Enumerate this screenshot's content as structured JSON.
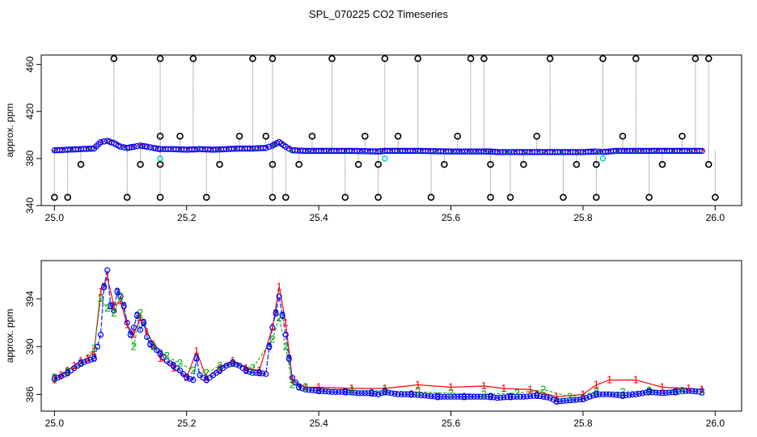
{
  "title": "SPL_070225  CO2 Timeseries",
  "chart_data": [
    {
      "type": "scatter",
      "ylabel": "approx. ppm",
      "xlim": [
        24.98,
        26.04
      ],
      "ylim": [
        340,
        468
      ],
      "xticks": [
        "25.0",
        "25.2",
        "25.4",
        "25.6",
        "25.8",
        "26.0"
      ],
      "yticks": [
        "340",
        "380",
        "420",
        "460"
      ],
      "colors": {
        "series": "#ff0000",
        "series_alt": "#00a000",
        "points": "#0000ff",
        "spikes": "#000000",
        "spike_lines": "#777777",
        "marker_cyan": "#00d0d0"
      },
      "series": [
        {
          "values": [
            [
              25.0,
              387
            ],
            [
              25.02,
              387.5
            ],
            [
              25.04,
              388
            ],
            [
              25.06,
              388.5
            ],
            [
              25.07,
              394
            ],
            [
              25.08,
              395
            ],
            [
              25.09,
              393
            ],
            [
              25.1,
              390
            ],
            [
              25.11,
              389
            ],
            [
              25.12,
              390
            ],
            [
              25.13,
              391
            ],
            [
              25.14,
              390
            ],
            [
              25.15,
              389
            ],
            [
              25.16,
              388
            ],
            [
              25.18,
              388
            ],
            [
              25.2,
              387.5
            ],
            [
              25.22,
              388
            ],
            [
              25.24,
              387.5
            ],
            [
              25.26,
              388
            ],
            [
              25.28,
              388.5
            ],
            [
              25.3,
              388.5
            ],
            [
              25.32,
              389
            ],
            [
              25.33,
              391
            ],
            [
              25.34,
              394
            ],
            [
              25.35,
              390
            ],
            [
              25.36,
              387
            ],
            [
              25.38,
              386.5
            ],
            [
              25.4,
              386.5
            ],
            [
              25.45,
              386.5
            ],
            [
              25.49,
              386
            ],
            [
              25.5,
              386.5
            ],
            [
              25.55,
              386.5
            ],
            [
              25.6,
              386
            ],
            [
              25.65,
              386
            ],
            [
              25.66,
              386
            ],
            [
              25.67,
              385.5
            ],
            [
              25.7,
              385.5
            ],
            [
              25.75,
              385.5
            ],
            [
              25.8,
              385.5
            ],
            [
              25.82,
              386
            ],
            [
              25.83,
              385.5
            ],
            [
              25.85,
              386.5
            ],
            [
              25.9,
              386.5
            ],
            [
              25.95,
              386.5
            ],
            [
              25.98,
              386.5
            ]
          ]
        }
      ],
      "spikes": [
        [
          25.0,
          347
        ],
        [
          25.02,
          347
        ],
        [
          25.04,
          375
        ],
        [
          25.09,
          465
        ],
        [
          25.11,
          347
        ],
        [
          25.13,
          375
        ],
        [
          25.16,
          347
        ],
        [
          25.16,
          375
        ],
        [
          25.16,
          399
        ],
        [
          25.16,
          465
        ],
        [
          25.19,
          399
        ],
        [
          25.21,
          465
        ],
        [
          25.23,
          347
        ],
        [
          25.25,
          375
        ],
        [
          25.28,
          399
        ],
        [
          25.3,
          465
        ],
        [
          25.32,
          399
        ],
        [
          25.33,
          465
        ],
        [
          25.33,
          375
        ],
        [
          25.33,
          347
        ],
        [
          25.35,
          347
        ],
        [
          25.37,
          375
        ],
        [
          25.39,
          399
        ],
        [
          25.42,
          465
        ],
        [
          25.44,
          347
        ],
        [
          25.46,
          375
        ],
        [
          25.47,
          399
        ],
        [
          25.49,
          347
        ],
        [
          25.49,
          375
        ],
        [
          25.5,
          465
        ],
        [
          25.52,
          399
        ],
        [
          25.55,
          465
        ],
        [
          25.57,
          347
        ],
        [
          25.59,
          375
        ],
        [
          25.61,
          399
        ],
        [
          25.63,
          465
        ],
        [
          25.65,
          465
        ],
        [
          25.66,
          375
        ],
        [
          25.66,
          347
        ],
        [
          25.69,
          347
        ],
        [
          25.71,
          375
        ],
        [
          25.73,
          399
        ],
        [
          25.75,
          465
        ],
        [
          25.77,
          347
        ],
        [
          25.79,
          375
        ],
        [
          25.82,
          375
        ],
        [
          25.82,
          347
        ],
        [
          25.83,
          465
        ],
        [
          25.86,
          399
        ],
        [
          25.88,
          465
        ],
        [
          25.9,
          347
        ],
        [
          25.92,
          375
        ],
        [
          25.95,
          399
        ],
        [
          25.97,
          465
        ],
        [
          25.99,
          465
        ],
        [
          25.99,
          375
        ],
        [
          26.0,
          347
        ]
      ],
      "cyan_markers": [
        [
          25.16,
          380
        ],
        [
          25.5,
          380
        ],
        [
          25.83,
          380
        ]
      ]
    },
    {
      "type": "scatter",
      "ylabel": "approx. ppm",
      "xlim": [
        24.98,
        26.04
      ],
      "ylim": [
        384.6,
        397.2
      ],
      "xticks": [
        "25.0",
        "25.2",
        "25.4",
        "25.6",
        "25.8",
        "26.0"
      ],
      "yticks": [
        "386",
        "390",
        "394"
      ],
      "marker_labels": [
        "1",
        "2",
        "3"
      ],
      "colors": {
        "series_1": "#ff0000",
        "series_2": "#00aa00",
        "series_3": "#0000cc",
        "points": "#0000ff",
        "line": "#2040ff"
      },
      "series": [
        {
          "name": "1",
          "values": [
            [
              25.0,
              387.2
            ],
            [
              25.01,
              387.6
            ],
            [
              25.02,
              388.0
            ],
            [
              25.03,
              388.4
            ],
            [
              25.04,
              388.8
            ],
            [
              25.05,
              389.0
            ],
            [
              25.06,
              389.6
            ],
            [
              25.07,
              394.6
            ],
            [
              25.08,
              395.8
            ],
            [
              25.09,
              393.4
            ],
            [
              25.1,
              393.8
            ],
            [
              25.11,
              391.8
            ],
            [
              25.12,
              391.0
            ],
            [
              25.13,
              392.4
            ],
            [
              25.14,
              391.2
            ],
            [
              25.15,
              390.2
            ],
            [
              25.16,
              389.0
            ],
            [
              25.18,
              388.2
            ],
            [
              25.2,
              387.4
            ],
            [
              25.215,
              389.6
            ],
            [
              25.23,
              387.4
            ],
            [
              25.25,
              388.2
            ],
            [
              25.27,
              388.8
            ],
            [
              25.29,
              388.2
            ],
            [
              25.31,
              388.0
            ],
            [
              25.33,
              391.6
            ],
            [
              25.34,
              395.0
            ],
            [
              25.35,
              392.0
            ],
            [
              25.36,
              387.2
            ],
            [
              25.38,
              386.6
            ],
            [
              25.4,
              386.6
            ],
            [
              25.45,
              386.5
            ],
            [
              25.5,
              386.5
            ],
            [
              25.55,
              386.8
            ],
            [
              25.6,
              386.6
            ],
            [
              25.65,
              386.7
            ],
            [
              25.68,
              386.5
            ],
            [
              25.72,
              386.4
            ],
            [
              25.76,
              385.8
            ],
            [
              25.8,
              386.0
            ],
            [
              25.82,
              386.8
            ],
            [
              25.84,
              387.2
            ],
            [
              25.88,
              387.2
            ],
            [
              25.92,
              386.6
            ],
            [
              25.96,
              386.5
            ],
            [
              25.98,
              386.4
            ]
          ]
        },
        {
          "name": "2",
          "values": [
            [
              25.0,
              387.4
            ],
            [
              25.02,
              387.9
            ],
            [
              25.04,
              388.6
            ],
            [
              25.06,
              389.8
            ],
            [
              25.07,
              394.0
            ],
            [
              25.08,
              393.2
            ],
            [
              25.09,
              392.8
            ],
            [
              25.1,
              394.2
            ],
            [
              25.12,
              390.0
            ],
            [
              25.13,
              392.8
            ],
            [
              25.15,
              390.0
            ],
            [
              25.17,
              389.2
            ],
            [
              25.19,
              388.6
            ],
            [
              25.21,
              388.0
            ],
            [
              25.23,
              387.8
            ],
            [
              25.25,
              388.4
            ],
            [
              25.27,
              388.6
            ],
            [
              25.3,
              388.2
            ],
            [
              25.33,
              390.6
            ],
            [
              25.34,
              392.4
            ],
            [
              25.35,
              390.0
            ],
            [
              25.36,
              386.8
            ],
            [
              25.38,
              386.6
            ],
            [
              25.45,
              386.3
            ],
            [
              25.5,
              386.3
            ],
            [
              25.55,
              386.2
            ],
            [
              25.6,
              386.1
            ],
            [
              25.65,
              386.0
            ],
            [
              25.7,
              386.1
            ],
            [
              25.74,
              386.4
            ],
            [
              25.78,
              385.8
            ],
            [
              25.82,
              386.2
            ],
            [
              25.86,
              386.2
            ],
            [
              25.9,
              386.3
            ],
            [
              25.95,
              386.3
            ],
            [
              25.98,
              386.2
            ]
          ]
        },
        {
          "name": "3",
          "values": [
            [
              25.0,
              387.3
            ],
            [
              25.01,
              387.5
            ],
            [
              25.02,
              387.8
            ],
            [
              25.03,
              388.2
            ],
            [
              25.04,
              388.6
            ],
            [
              25.05,
              388.8
            ],
            [
              25.06,
              389.0
            ],
            [
              25.07,
              391.0
            ],
            [
              25.075,
              395.0
            ],
            [
              25.08,
              396.4
            ],
            [
              25.085,
              393.4
            ],
            [
              25.09,
              393.0
            ],
            [
              25.095,
              394.6
            ],
            [
              25.1,
              394.2
            ],
            [
              25.105,
              393.4
            ],
            [
              25.11,
              392.0
            ],
            [
              25.115,
              391.0
            ],
            [
              25.12,
              391.6
            ],
            [
              25.125,
              392.6
            ],
            [
              25.13,
              391.4
            ],
            [
              25.135,
              392.0
            ],
            [
              25.14,
              390.8
            ],
            [
              25.145,
              390.2
            ],
            [
              25.15,
              390.0
            ],
            [
              25.16,
              389.4
            ],
            [
              25.17,
              388.8
            ],
            [
              25.18,
              388.4
            ],
            [
              25.19,
              388.0
            ],
            [
              25.2,
              387.4
            ],
            [
              25.21,
              387.2
            ],
            [
              25.215,
              389.0
            ],
            [
              25.22,
              387.6
            ],
            [
              25.23,
              387.2
            ],
            [
              25.24,
              387.6
            ],
            [
              25.25,
              388.0
            ],
            [
              25.26,
              388.4
            ],
            [
              25.27,
              388.6
            ],
            [
              25.28,
              388.4
            ],
            [
              25.29,
              388.0
            ],
            [
              25.3,
              387.8
            ],
            [
              25.31,
              387.8
            ],
            [
              25.32,
              387.7
            ],
            [
              25.325,
              390.0
            ],
            [
              25.33,
              391.6
            ],
            [
              25.335,
              392.8
            ],
            [
              25.34,
              394.2
            ],
            [
              25.345,
              392.6
            ],
            [
              25.35,
              391.0
            ],
            [
              25.355,
              389.0
            ],
            [
              25.36,
              387.4
            ],
            [
              25.37,
              386.6
            ],
            [
              25.38,
              386.4
            ],
            [
              25.4,
              386.3
            ],
            [
              25.42,
              386.2
            ],
            [
              25.44,
              386.2
            ],
            [
              25.46,
              386.1
            ],
            [
              25.48,
              386.1
            ],
            [
              25.49,
              386.0
            ],
            [
              25.5,
              386.2
            ],
            [
              25.52,
              386.0
            ],
            [
              25.54,
              386.0
            ],
            [
              25.56,
              385.9
            ],
            [
              25.58,
              385.8
            ],
            [
              25.6,
              385.8
            ],
            [
              25.62,
              385.8
            ],
            [
              25.64,
              385.8
            ],
            [
              25.66,
              385.8
            ],
            [
              25.67,
              385.7
            ],
            [
              25.69,
              385.8
            ],
            [
              25.71,
              385.8
            ],
            [
              25.73,
              385.9
            ],
            [
              25.75,
              385.7
            ],
            [
              25.76,
              385.4
            ],
            [
              25.78,
              385.5
            ],
            [
              25.8,
              385.6
            ],
            [
              25.81,
              385.8
            ],
            [
              25.82,
              386.0
            ],
            [
              25.84,
              386.0
            ],
            [
              25.86,
              385.9
            ],
            [
              25.88,
              386.0
            ],
            [
              25.9,
              386.2
            ],
            [
              25.92,
              386.1
            ],
            [
              25.94,
              386.2
            ],
            [
              25.96,
              386.3
            ],
            [
              25.98,
              386.2
            ]
          ]
        }
      ]
    }
  ]
}
